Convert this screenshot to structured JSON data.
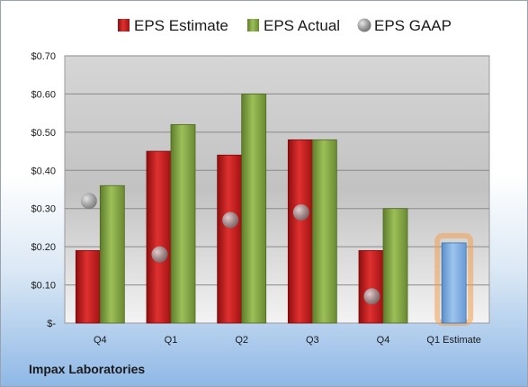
{
  "company_name": "Impax Laboratories",
  "chart_data": {
    "type": "bar",
    "categories": [
      "Q4",
      "Q1",
      "Q2",
      "Q3",
      "Q4",
      "Q1 Estimate"
    ],
    "series": [
      {
        "name": "EPS Estimate",
        "values": [
          0.19,
          0.45,
          0.44,
          0.48,
          0.19,
          null
        ],
        "color": "#c81e1e"
      },
      {
        "name": "EPS Actual",
        "values": [
          0.36,
          0.52,
          0.6,
          0.48,
          0.3,
          null
        ],
        "color": "#8aab48"
      },
      {
        "name": "EPS GAAP",
        "values": [
          0.32,
          0.18,
          0.27,
          0.29,
          0.07,
          null
        ],
        "color": "#9a9a9a"
      }
    ],
    "estimate_bar": {
      "category": "Q1 Estimate",
      "value": 0.21,
      "color": "#7eaee2",
      "highlight": "#f0a050"
    },
    "ylim": [
      0,
      0.7
    ],
    "yticks": [
      0,
      0.1,
      0.2,
      0.3,
      0.4,
      0.5,
      0.6,
      0.7
    ],
    "ytick_labels": [
      "$-",
      "$0.10",
      "$0.20",
      "$0.30",
      "$0.40",
      "$0.50",
      "$0.60",
      "$0.70"
    ],
    "grid": true,
    "legend_position": "top"
  }
}
